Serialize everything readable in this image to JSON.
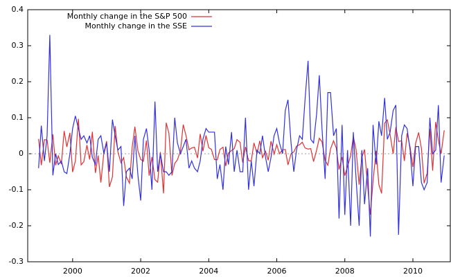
{
  "chart_data": {
    "type": "line",
    "x": [
      1999.0,
      1999.08,
      1999.17,
      1999.25,
      1999.33,
      1999.42,
      1999.5,
      1999.58,
      1999.67,
      1999.75,
      1999.83,
      1999.92,
      2000.0,
      2000.08,
      2000.17,
      2000.25,
      2000.33,
      2000.42,
      2000.5,
      2000.58,
      2000.67,
      2000.75,
      2000.83,
      2000.92,
      2001.0,
      2001.08,
      2001.17,
      2001.25,
      2001.33,
      2001.42,
      2001.5,
      2001.58,
      2001.67,
      2001.75,
      2001.83,
      2001.92,
      2002.0,
      2002.08,
      2002.17,
      2002.25,
      2002.33,
      2002.42,
      2002.5,
      2002.58,
      2002.67,
      2002.75,
      2002.83,
      2002.92,
      2003.0,
      2003.08,
      2003.17,
      2003.25,
      2003.33,
      2003.42,
      2003.5,
      2003.58,
      2003.67,
      2003.75,
      2003.83,
      2003.92,
      2004.0,
      2004.08,
      2004.17,
      2004.25,
      2004.33,
      2004.42,
      2004.5,
      2004.58,
      2004.67,
      2004.75,
      2004.83,
      2004.92,
      2005.0,
      2005.08,
      2005.17,
      2005.25,
      2005.33,
      2005.42,
      2005.5,
      2005.58,
      2005.67,
      2005.75,
      2005.83,
      2005.92,
      2006.0,
      2006.08,
      2006.17,
      2006.25,
      2006.33,
      2006.42,
      2006.5,
      2006.58,
      2006.67,
      2006.75,
      2006.83,
      2006.92,
      2007.0,
      2007.08,
      2007.17,
      2007.25,
      2007.33,
      2007.42,
      2007.5,
      2007.58,
      2007.67,
      2007.75,
      2007.83,
      2007.92,
      2008.0,
      2008.08,
      2008.17,
      2008.25,
      2008.33,
      2008.42,
      2008.5,
      2008.58,
      2008.67,
      2008.75,
      2008.83,
      2008.92,
      2009.0,
      2009.08,
      2009.17,
      2009.25,
      2009.33,
      2009.42,
      2009.5,
      2009.58,
      2009.67,
      2009.75,
      2009.83,
      2009.92,
      2010.0,
      2010.08,
      2010.17,
      2010.25,
      2010.33,
      2010.42,
      2010.5,
      2010.58,
      2010.67,
      2010.75,
      2010.83,
      2010.92
    ],
    "series": [
      {
        "name": "Monthly change in the S&P 500",
        "color": "#e03030",
        "values": [
          0.041,
          -0.032,
          0.039,
          0.038,
          -0.025,
          0.054,
          -0.032,
          -0.006,
          -0.029,
          0.063,
          0.019,
          0.058,
          -0.051,
          -0.02,
          0.097,
          -0.031,
          -0.022,
          0.024,
          -0.016,
          0.061,
          -0.053,
          -0.005,
          -0.08,
          0.004,
          0.035,
          -0.092,
          -0.064,
          0.077,
          0.005,
          -0.025,
          -0.011,
          -0.064,
          -0.082,
          0.018,
          0.075,
          0.008,
          -0.016,
          -0.021,
          0.037,
          -0.061,
          -0.009,
          -0.072,
          -0.079,
          0.005,
          -0.11,
          0.086,
          0.057,
          -0.06,
          -0.027,
          -0.017,
          0.008,
          0.081,
          0.051,
          0.011,
          0.016,
          0.018,
          -0.012,
          0.055,
          0.007,
          0.051,
          0.017,
          0.012,
          -0.016,
          -0.017,
          0.012,
          0.018,
          -0.034,
          0.002,
          0.009,
          0.014,
          0.039,
          0.032,
          -0.025,
          0.019,
          -0.019,
          -0.02,
          0.03,
          0.0,
          0.036,
          -0.011,
          0.007,
          -0.018,
          0.035,
          -0.001,
          0.025,
          0.0,
          0.011,
          0.012,
          -0.031,
          0.0,
          0.005,
          0.021,
          0.025,
          0.032,
          0.016,
          0.013,
          0.014,
          -0.022,
          0.01,
          0.043,
          0.033,
          -0.018,
          -0.032,
          0.013,
          0.036,
          0.015,
          -0.044,
          -0.009,
          -0.061,
          -0.035,
          -0.006,
          0.048,
          0.011,
          -0.086,
          -0.01,
          0.012,
          -0.091,
          -0.169,
          -0.075,
          0.008,
          -0.086,
          -0.11,
          0.085,
          0.094,
          0.053,
          0.0,
          0.074,
          0.034,
          0.036,
          -0.02,
          0.057,
          0.018,
          -0.037,
          0.029,
          0.059,
          0.015,
          -0.082,
          -0.054,
          0.069,
          -0.047,
          0.088,
          0.037,
          0.0,
          0.065
        ]
      },
      {
        "name": "Monthly change in the SSE",
        "color": "#3030e0",
        "values": [
          -0.04,
          0.078,
          -0.02,
          0.05,
          0.33,
          -0.06,
          0.0,
          -0.03,
          -0.02,
          -0.05,
          -0.055,
          0.0,
          0.07,
          0.105,
          0.07,
          0.04,
          0.05,
          0.03,
          0.05,
          -0.01,
          -0.03,
          0.04,
          0.05,
          0.0,
          0.03,
          -0.05,
          0.095,
          0.05,
          0.01,
          0.02,
          -0.145,
          -0.05,
          -0.04,
          -0.07,
          0.05,
          -0.06,
          -0.13,
          0.04,
          0.07,
          0.01,
          -0.1,
          0.145,
          -0.05,
          0.0,
          -0.05,
          -0.05,
          -0.06,
          -0.05,
          0.1,
          0.03,
          0.0,
          0.02,
          0.04,
          -0.04,
          -0.02,
          -0.04,
          -0.05,
          -0.02,
          0.04,
          0.07,
          0.06,
          0.06,
          0.06,
          -0.07,
          -0.03,
          -0.1,
          0.02,
          -0.03,
          0.06,
          -0.05,
          0.01,
          -0.05,
          -0.05,
          0.1,
          -0.1,
          -0.02,
          -0.09,
          0.01,
          0.0,
          0.05,
          -0.01,
          -0.05,
          -0.01,
          0.05,
          0.07,
          0.03,
          0.0,
          0.12,
          0.15,
          0.03,
          -0.05,
          0.01,
          0.05,
          0.04,
          0.15,
          0.258,
          0.04,
          0.03,
          0.11,
          0.218,
          0.07,
          -0.07,
          0.17,
          0.17,
          0.05,
          0.07,
          -0.18,
          0.08,
          -0.17,
          0.01,
          -0.2,
          0.06,
          -0.07,
          -0.2,
          0.01,
          -0.14,
          -0.04,
          -0.23,
          0.08,
          -0.03,
          0.09,
          0.05,
          0.155,
          0.04,
          0.06,
          0.12,
          0.135,
          -0.225,
          0.05,
          0.08,
          0.07,
          0.01,
          -0.09,
          0.02,
          0.02,
          -0.08,
          -0.1,
          -0.08,
          0.1,
          0.0,
          0.01,
          0.135,
          -0.08,
          -0.005
        ]
      }
    ],
    "xlim": [
      1998.68,
      2011.1
    ],
    "xticks": [
      2000,
      2002,
      2004,
      2006,
      2008,
      2010
    ],
    "ylim": [
      -0.3,
      0.4
    ],
    "yticks": [
      -0.3,
      -0.2,
      -0.1,
      0,
      0.1,
      0.2,
      0.3,
      0.4
    ],
    "zero_line": true,
    "legend": "upper left"
  }
}
